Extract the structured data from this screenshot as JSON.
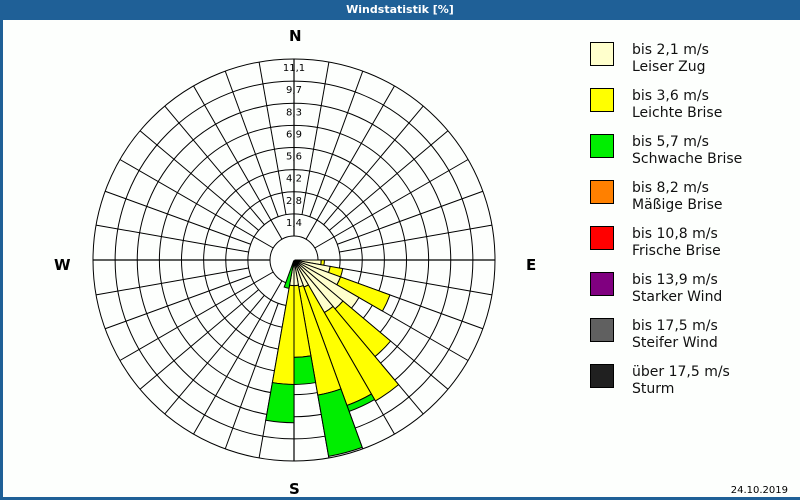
{
  "header": {
    "title": "Windstatistik [%]"
  },
  "compass": {
    "n": "N",
    "e": "E",
    "s": "S",
    "w": "W"
  },
  "footer": {
    "date": "24.10.2019"
  },
  "legend": [
    {
      "speed": "bis 2,1 m/s",
      "name": "Leiser Zug",
      "color": "#ffffcc"
    },
    {
      "speed": "bis 3,6 m/s",
      "name": "Leichte Brise",
      "color": "#ffff00"
    },
    {
      "speed": "bis 5,7 m/s",
      "name": "Schwache Brise",
      "color": "#00ee00"
    },
    {
      "speed": "bis 8,2 m/s",
      "name": "Mäßige Brise",
      "color": "#ff8000"
    },
    {
      "speed": "bis 10,8 m/s",
      "name": "Frische Brise",
      "color": "#ff0000"
    },
    {
      "speed": "bis 13,9 m/s",
      "name": "Starker Wind",
      "color": "#800080"
    },
    {
      "speed": "bis 17,5 m/s",
      "name": "Steifer Wind",
      "color": "#606060"
    },
    {
      "speed": "über 17,5 m/s",
      "name": "Sturm",
      "color": "#202020"
    }
  ],
  "chart_data": {
    "type": "polar-bar (wind rose)",
    "title": "Windstatistik [%]",
    "radial_ticks": [
      "1,4",
      "2,8",
      "4,2",
      "5,6",
      "6,9",
      "8,3",
      "9,7",
      "11,1"
    ],
    "radial_max": 11.1,
    "sector_width_deg": 10,
    "series_names": [
      "Leiser Zug",
      "Leichte Brise",
      "Schwache Brise"
    ],
    "sectors": [
      {
        "dir_deg": 95,
        "cumulative": [
          0.2,
          0.4,
          0.4
        ]
      },
      {
        "dir_deg": 105,
        "cumulative": [
          0.8,
          1.6,
          1.6
        ]
      },
      {
        "dir_deg": 115,
        "cumulative": [
          1.6,
          4.9,
          4.9
        ]
      },
      {
        "dir_deg": 125,
        "cumulative": [
          3.2,
          3.2,
          3.2
        ]
      },
      {
        "dir_deg": 135,
        "cumulative": [
          2.5,
          6.4,
          6.4
        ]
      },
      {
        "dir_deg": 145,
        "cumulative": [
          2.3,
          8.7,
          8.7
        ]
      },
      {
        "dir_deg": 155,
        "cumulative": [
          0.3,
          8.2,
          8.6
        ]
      },
      {
        "dir_deg": 165,
        "cumulative": [
          0.2,
          7.1,
          11.0
        ]
      },
      {
        "dir_deg": 175,
        "cumulative": [
          0.1,
          4.6,
          6.3
        ]
      },
      {
        "dir_deg": 185,
        "cumulative": [
          0.1,
          6.3,
          8.7
        ]
      },
      {
        "dir_deg": 195,
        "cumulative": [
          0.0,
          0.0,
          0.3
        ]
      }
    ],
    "legend_position": "right"
  }
}
